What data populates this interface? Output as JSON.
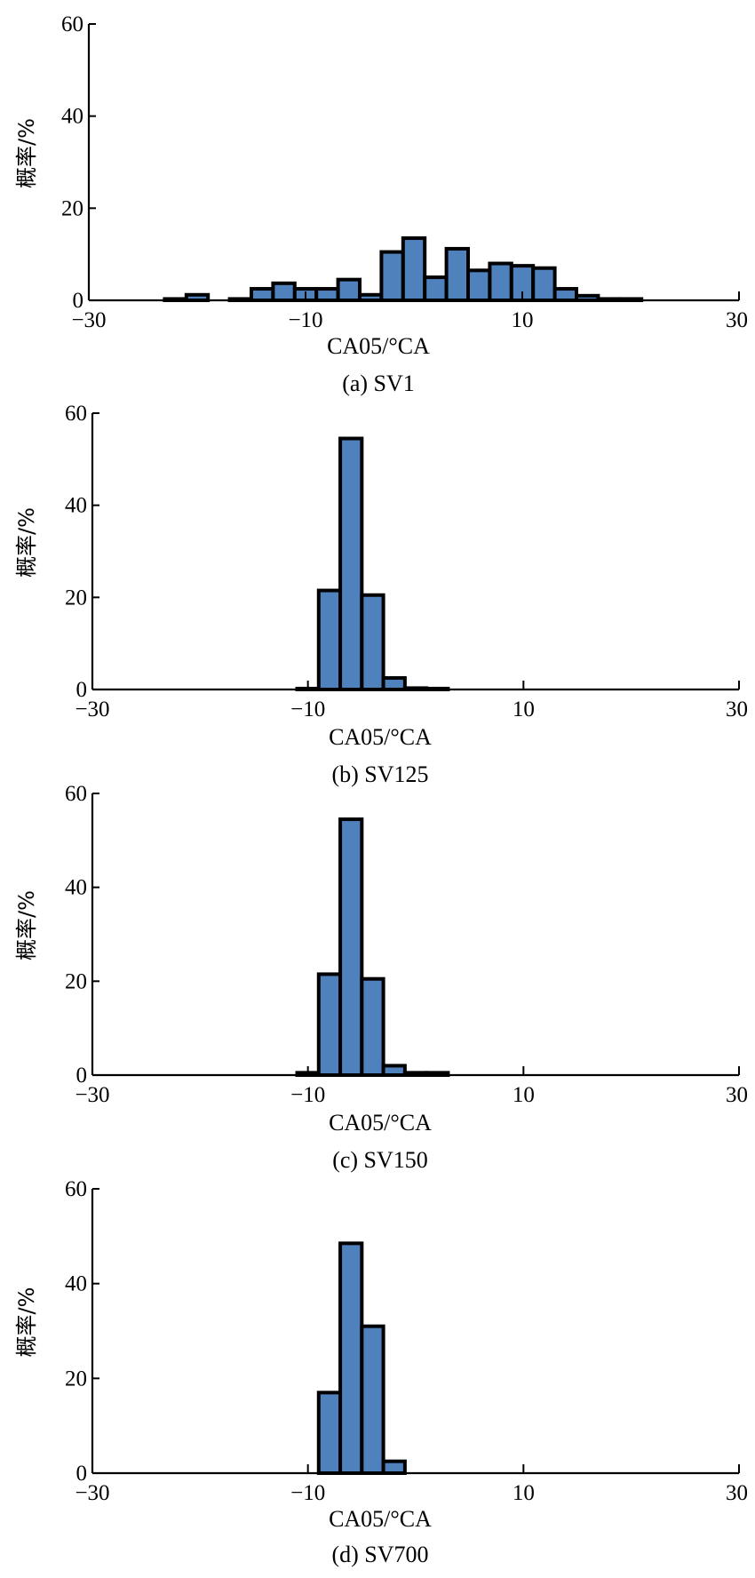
{
  "chart_data": [
    {
      "type": "bar",
      "caption": "(a) SV1",
      "xlabel": "CA05/°CA",
      "ylabel": "概率/%",
      "xlim": [
        -30,
        30
      ],
      "ylim": [
        0,
        60
      ],
      "xticks": [
        "−30",
        "−10",
        "10",
        "30"
      ],
      "yticks": [
        "0",
        "20",
        "40",
        "60"
      ],
      "bin_width": 2,
      "bins": [
        {
          "x": -22,
          "y": 0.3
        },
        {
          "x": -20,
          "y": 1.2
        },
        {
          "x": -16,
          "y": 0.3
        },
        {
          "x": -14,
          "y": 2.5
        },
        {
          "x": -12,
          "y": 3.7
        },
        {
          "x": -10,
          "y": 2.5
        },
        {
          "x": -8,
          "y": 2.5
        },
        {
          "x": -6,
          "y": 4.5
        },
        {
          "x": -4,
          "y": 1.2
        },
        {
          "x": -2,
          "y": 10.5
        },
        {
          "x": 0,
          "y": 13.5
        },
        {
          "x": 2,
          "y": 5.0
        },
        {
          "x": 4,
          "y": 11.2
        },
        {
          "x": 6,
          "y": 6.5
        },
        {
          "x": 8,
          "y": 8.0
        },
        {
          "x": 10,
          "y": 7.5
        },
        {
          "x": 12,
          "y": 7.0
        },
        {
          "x": 14,
          "y": 2.5
        },
        {
          "x": 16,
          "y": 1.0
        },
        {
          "x": 18,
          "y": 0.3
        },
        {
          "x": 20,
          "y": 0.3
        }
      ]
    },
    {
      "type": "bar",
      "caption": "(b) SV125",
      "xlabel": "CA05/°CA",
      "ylabel": "概率/%",
      "xlim": [
        -30,
        30
      ],
      "ylim": [
        0,
        60
      ],
      "xticks": [
        "−30",
        "−10",
        "10",
        "30"
      ],
      "yticks": [
        "0",
        "20",
        "40",
        "60"
      ],
      "bin_width": 2,
      "bins": [
        {
          "x": -10,
          "y": 0.2
        },
        {
          "x": -8,
          "y": 21.5
        },
        {
          "x": -6,
          "y": 54.5
        },
        {
          "x": -4,
          "y": 20.5
        },
        {
          "x": -2,
          "y": 2.5
        },
        {
          "x": 0,
          "y": 0.3
        },
        {
          "x": 2,
          "y": 0.2
        }
      ]
    },
    {
      "type": "bar",
      "caption": "(c) SV150",
      "xlabel": "CA05/°CA",
      "ylabel": "概率/%",
      "xlim": [
        -30,
        30
      ],
      "ylim": [
        0,
        60
      ],
      "xticks": [
        "−30",
        "−10",
        "10",
        "30"
      ],
      "yticks": [
        "0",
        "20",
        "40",
        "60"
      ],
      "bin_width": 2,
      "bins": [
        {
          "x": -10,
          "y": 0.5
        },
        {
          "x": -8,
          "y": 21.5
        },
        {
          "x": -6,
          "y": 54.5
        },
        {
          "x": -4,
          "y": 20.5
        },
        {
          "x": -2,
          "y": 2.0
        },
        {
          "x": 0,
          "y": 0.5
        },
        {
          "x": 2,
          "y": 0.5
        }
      ]
    },
    {
      "type": "bar",
      "caption": "(d) SV700",
      "xlabel": "CA05/°CA",
      "ylabel": "概率/%",
      "xlim": [
        -30,
        30
      ],
      "ylim": [
        0,
        60
      ],
      "xticks": [
        "−30",
        "−10",
        "10",
        "30"
      ],
      "yticks": [
        "0",
        "20",
        "40",
        "60"
      ],
      "bin_width": 2,
      "bins": [
        {
          "x": -8,
          "y": 17.0
        },
        {
          "x": -6,
          "y": 48.5
        },
        {
          "x": -4,
          "y": 31.0
        },
        {
          "x": -2,
          "y": 2.5
        }
      ]
    }
  ]
}
